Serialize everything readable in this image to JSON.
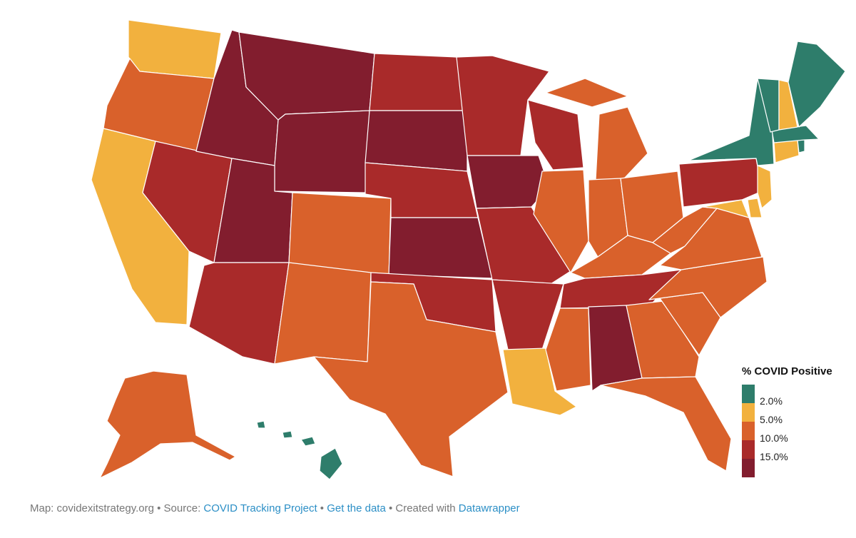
{
  "legend": {
    "title": "% COVID Positive",
    "levels": [
      {
        "label": "",
        "color": "#2e7d6b"
      },
      {
        "label": "2.0%",
        "color": "#f2b13e"
      },
      {
        "label": "5.0%",
        "color": "#d9612b"
      },
      {
        "label": "10.0%",
        "color": "#a92a2a"
      },
      {
        "label": "15.0%",
        "color": "#821d2e"
      }
    ]
  },
  "footer": {
    "prefix": "Map: covidexitstrategy.org",
    "sep1": " • Source: ",
    "source_link": "COVID Tracking Project",
    "sep2": " • ",
    "data_link": "Get the data",
    "sep3": " • Created with ",
    "tool_link": "Datawrapper"
  },
  "states": [
    {
      "name": "Washington",
      "level": 1
    },
    {
      "name": "Oregon",
      "level": 2
    },
    {
      "name": "California",
      "level": 1
    },
    {
      "name": "Nevada",
      "level": 3
    },
    {
      "name": "Idaho",
      "level": 4
    },
    {
      "name": "Montana",
      "level": 4
    },
    {
      "name": "Wyoming",
      "level": 4
    },
    {
      "name": "Utah",
      "level": 4
    },
    {
      "name": "Arizona",
      "level": 3
    },
    {
      "name": "Colorado",
      "level": 2
    },
    {
      "name": "New Mexico",
      "level": 2
    },
    {
      "name": "North Dakota",
      "level": 3
    },
    {
      "name": "South Dakota",
      "level": 4
    },
    {
      "name": "Nebraska",
      "level": 3
    },
    {
      "name": "Kansas",
      "level": 4
    },
    {
      "name": "Oklahoma",
      "level": 3
    },
    {
      "name": "Texas",
      "level": 2
    },
    {
      "name": "Minnesota",
      "level": 3
    },
    {
      "name": "Iowa",
      "level": 4
    },
    {
      "name": "Missouri",
      "level": 3
    },
    {
      "name": "Arkansas",
      "level": 3
    },
    {
      "name": "Louisiana",
      "level": 1
    },
    {
      "name": "Wisconsin",
      "level": 3
    },
    {
      "name": "Illinois",
      "level": 2
    },
    {
      "name": "Michigan",
      "level": 2
    },
    {
      "name": "Indiana",
      "level": 2
    },
    {
      "name": "Ohio",
      "level": 2
    },
    {
      "name": "Kentucky",
      "level": 2
    },
    {
      "name": "Tennessee",
      "level": 3
    },
    {
      "name": "Mississippi",
      "level": 2
    },
    {
      "name": "Alabama",
      "level": 4
    },
    {
      "name": "Georgia",
      "level": 2
    },
    {
      "name": "Florida",
      "level": 2
    },
    {
      "name": "South Carolina",
      "level": 2
    },
    {
      "name": "North Carolina",
      "level": 2
    },
    {
      "name": "Virginia",
      "level": 2
    },
    {
      "name": "West Virginia",
      "level": 2
    },
    {
      "name": "Pennsylvania",
      "level": 3
    },
    {
      "name": "New York",
      "level": 0
    },
    {
      "name": "Vermont",
      "level": 0
    },
    {
      "name": "New Hampshire",
      "level": 1
    },
    {
      "name": "Maine",
      "level": 0
    },
    {
      "name": "Massachusetts",
      "level": 0
    },
    {
      "name": "Rhode Island",
      "level": 0
    },
    {
      "name": "Connecticut",
      "level": 1
    },
    {
      "name": "New Jersey",
      "level": 1
    },
    {
      "name": "Delaware",
      "level": 1
    },
    {
      "name": "Maryland",
      "level": 1
    },
    {
      "name": "Alaska",
      "level": 2
    },
    {
      "name": "Hawaii",
      "level": 0
    }
  ]
}
